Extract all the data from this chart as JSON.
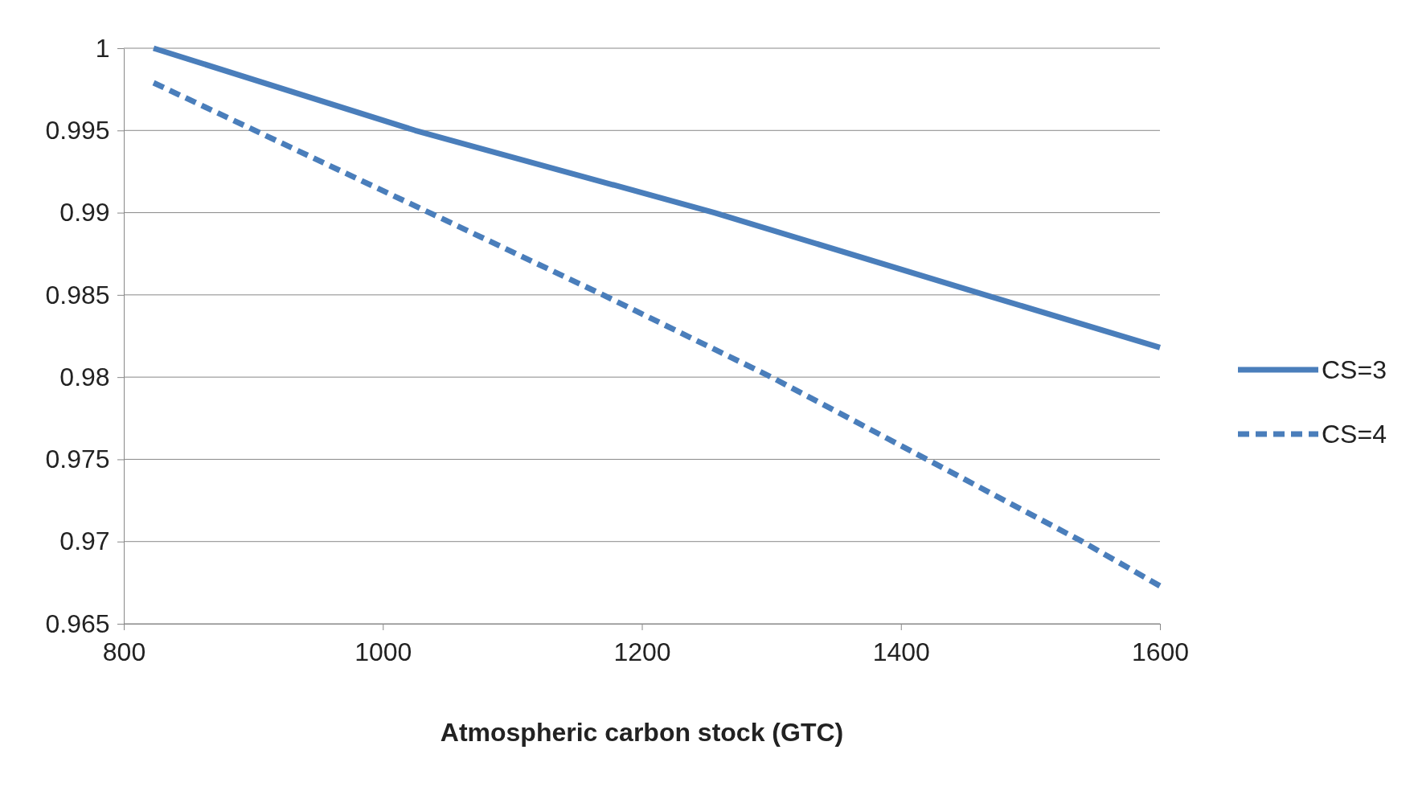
{
  "chart_data": {
    "type": "line",
    "xlabel": "Atmospheric carbon stock (GTC)",
    "xlim": [
      800,
      1600
    ],
    "xticks": [
      800,
      1000,
      1200,
      1400,
      1600
    ],
    "ylim": [
      0.965,
      1
    ],
    "yticks": [
      0.965,
      0.97,
      0.975,
      0.98,
      0.985,
      0.99,
      0.995,
      1
    ],
    "grid": "y",
    "legend": "right",
    "marker": "none",
    "series": [
      {
        "name": "CS=3",
        "color": "#4a7ebb",
        "line_style": "solid",
        "x": [
          823,
          1025,
          1256,
          1465,
          1600
        ],
        "values": [
          1,
          0.995,
          0.99,
          0.985,
          0.9818
        ]
      },
      {
        "name": "CS=4",
        "color": "#4a7ebb",
        "line_style": "dashed",
        "x": [
          823,
          1036,
          1170,
          1300,
          1420,
          1540,
          1600
        ],
        "values": [
          0.9979,
          0.99,
          0.985,
          0.98,
          0.975,
          0.97,
          0.9673
        ]
      }
    ]
  }
}
